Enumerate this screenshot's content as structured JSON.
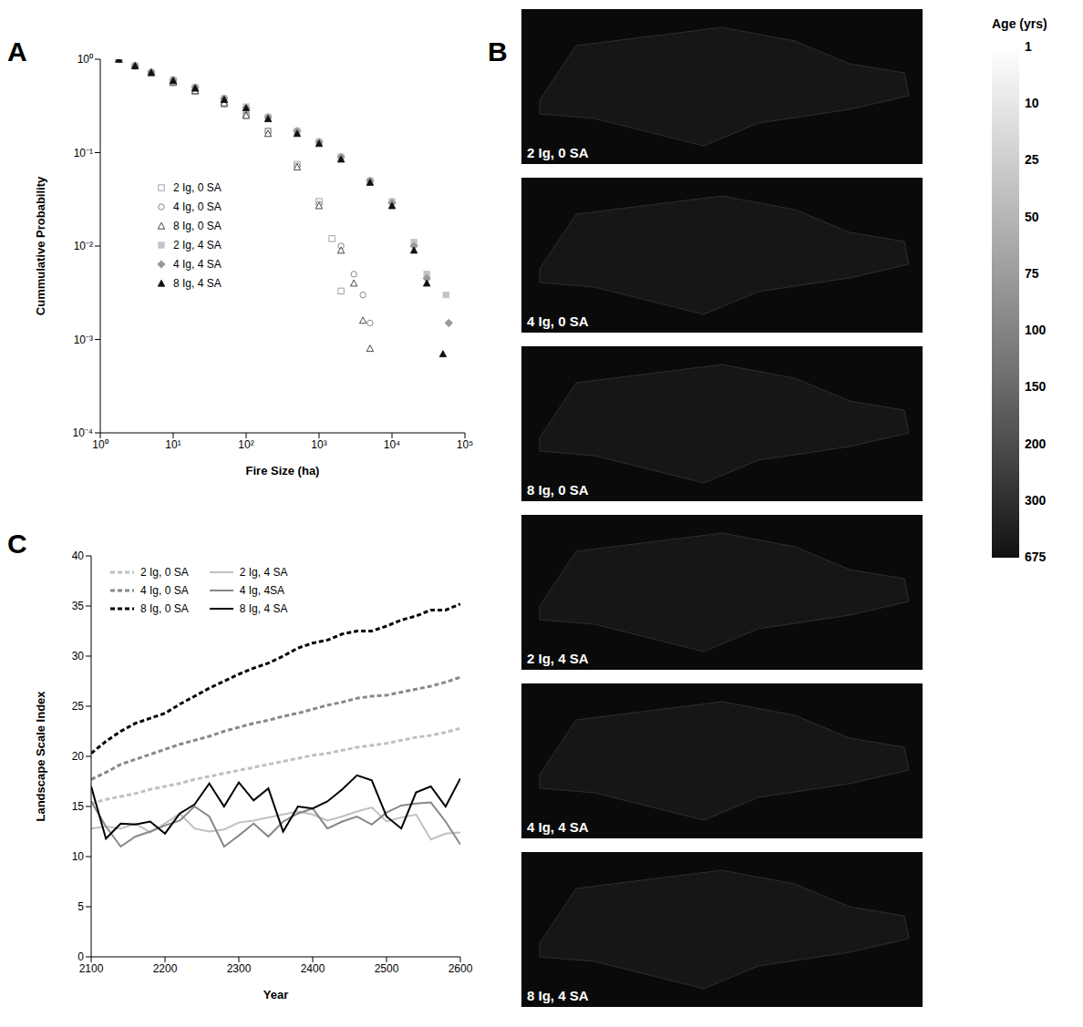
{
  "chart_data": [
    {
      "type": "scatter",
      "panel": "A",
      "log": true,
      "grid": false,
      "legend": "lower left",
      "x_label": "Fire Size (ha)",
      "y_label": "Cummulative Probability",
      "xlim": [
        1,
        100000
      ],
      "xticks": [
        {
          "value": 1,
          "label": "10⁰"
        },
        {
          "value": 10,
          "label": "10¹"
        },
        {
          "value": 100,
          "label": "10²"
        },
        {
          "value": 1000,
          "label": "10³"
        },
        {
          "value": 10000,
          "label": "10⁴"
        },
        {
          "value": 100000,
          "label": "10⁵"
        }
      ],
      "ylim": [
        0.0001,
        1
      ],
      "yticks": [
        {
          "value": 0.0001,
          "label": "10⁻⁴"
        },
        {
          "value": 0.001,
          "label": "10⁻³"
        },
        {
          "value": 0.01,
          "label": "10⁻²"
        },
        {
          "value": 0.1,
          "label": "10⁻¹"
        },
        {
          "value": 1,
          "label": "10⁰"
        }
      ],
      "series": [
        {
          "name": "2 Ig, 0 SA",
          "color": "#9a9a9a",
          "marker": "open_square",
          "x": [
            1.8,
            3,
            5,
            10,
            20,
            50,
            100,
            200,
            500,
            1000,
            1500,
            2000
          ],
          "values": [
            1,
            0.85,
            0.71,
            0.56,
            0.45,
            0.33,
            0.25,
            0.17,
            0.075,
            0.03,
            0.012,
            0.0033
          ]
        },
        {
          "name": "4 Ig, 0 SA",
          "color": "#7a7a7a",
          "marker": "open_circle",
          "x": [
            1.8,
            3,
            5,
            10,
            20,
            50,
            100,
            200,
            500,
            1000,
            2000,
            3000,
            4000,
            5000
          ],
          "values": [
            1,
            0.85,
            0.72,
            0.57,
            0.46,
            0.34,
            0.25,
            0.17,
            0.072,
            0.028,
            0.01,
            0.005,
            0.003,
            0.0015
          ]
        },
        {
          "name": "8 Ig, 0 SA",
          "color": "#333333",
          "marker": "open_triangle",
          "x": [
            1.8,
            3,
            5,
            10,
            20,
            50,
            100,
            200,
            500,
            1000,
            2000,
            3000,
            4000,
            5000
          ],
          "values": [
            1,
            0.86,
            0.72,
            0.57,
            0.46,
            0.34,
            0.25,
            0.16,
            0.07,
            0.027,
            0.009,
            0.004,
            0.0016,
            0.0008
          ]
        },
        {
          "name": "2 Ig, 4 SA",
          "color": "#c4c4c4",
          "marker": "square",
          "x": [
            1.8,
            3,
            5,
            10,
            20,
            50,
            100,
            200,
            500,
            1000,
            2000,
            5000,
            10000,
            20000,
            30000,
            55000
          ],
          "values": [
            1,
            0.84,
            0.72,
            0.6,
            0.5,
            0.38,
            0.31,
            0.24,
            0.17,
            0.13,
            0.09,
            0.05,
            0.03,
            0.011,
            0.005,
            0.003
          ]
        },
        {
          "name": "4 Ig, 4 SA",
          "color": "#999999",
          "marker": "diamond",
          "x": [
            1.8,
            3,
            5,
            10,
            20,
            50,
            100,
            200,
            500,
            1000,
            2000,
            5000,
            10000,
            20000,
            30000,
            60000
          ],
          "values": [
            1,
            0.85,
            0.73,
            0.6,
            0.5,
            0.38,
            0.3,
            0.24,
            0.17,
            0.13,
            0.09,
            0.05,
            0.029,
            0.01,
            0.0045,
            0.0015
          ]
        },
        {
          "name": "8 Ig, 4 SA",
          "color": "#111111",
          "marker": "triangle",
          "x": [
            1.8,
            3,
            5,
            10,
            20,
            50,
            100,
            200,
            500,
            1000,
            2000,
            5000,
            10000,
            20000,
            30000,
            50000
          ],
          "values": [
            1,
            0.85,
            0.72,
            0.59,
            0.49,
            0.37,
            0.3,
            0.23,
            0.16,
            0.125,
            0.085,
            0.048,
            0.027,
            0.009,
            0.004,
            0.0007
          ]
        }
      ]
    },
    {
      "type": "map",
      "panel": "B",
      "maps": [
        "2 Ig, 0 SA",
        "4 Ig, 0 SA",
        "8 Ig, 0 SA",
        "2 Ig, 4 SA",
        "4 Ig, 4 SA",
        "8 Ig, 4 SA"
      ],
      "colorbar": {
        "title": "Age (yrs)",
        "ticks": [
          1,
          10,
          25,
          50,
          75,
          100,
          150,
          200,
          300,
          675
        ]
      }
    },
    {
      "type": "line",
      "panel": "C",
      "grid": false,
      "legend": "upper left",
      "x_label": "Year",
      "y_label": "Landscape Scale Index",
      "xlim": [
        2100,
        2600
      ],
      "xticks": [
        2100,
        2200,
        2300,
        2400,
        2500,
        2600
      ],
      "ylim": [
        0,
        40
      ],
      "yticks": [
        0,
        5,
        10,
        15,
        20,
        25,
        30,
        35,
        40
      ],
      "x": [
        2100,
        2120,
        2140,
        2160,
        2180,
        2200,
        2220,
        2240,
        2260,
        2280,
        2300,
        2320,
        2340,
        2360,
        2380,
        2400,
        2420,
        2440,
        2460,
        2480,
        2500,
        2520,
        2540,
        2560,
        2580,
        2600
      ],
      "series": [
        {
          "name": "2 Ig, 0 SA",
          "color": "#c0c0c0",
          "line_style": "dashed",
          "values": [
            15.3,
            15.7,
            16,
            16.3,
            16.7,
            17,
            17.3,
            17.7,
            18,
            18.3,
            18.6,
            18.9,
            19.2,
            19.5,
            19.8,
            20.1,
            20.3,
            20.6,
            20.9,
            21.1,
            21.3,
            21.6,
            21.9,
            22.1,
            22.4,
            22.8
          ]
        },
        {
          "name": "4 Ig, 0 SA",
          "color": "#888888",
          "line_style": "dashed",
          "values": [
            17.7,
            18.4,
            19.2,
            19.7,
            20.2,
            20.7,
            21.2,
            21.6,
            22,
            22.5,
            22.9,
            23.3,
            23.6,
            24,
            24.3,
            24.7,
            25.1,
            25.4,
            25.8,
            26,
            26.1,
            26.4,
            26.7,
            27,
            27.4,
            27.9
          ]
        },
        {
          "name": "8 Ig, 0 SA",
          "color": "#000000",
          "line_style": "dashed",
          "values": [
            20.3,
            21.5,
            22.5,
            23.3,
            23.8,
            24.3,
            25.2,
            26,
            26.8,
            27.5,
            28.2,
            28.8,
            29.3,
            30,
            30.8,
            31.3,
            31.6,
            32.2,
            32.5,
            32.5,
            33,
            33.6,
            34,
            34.6,
            34.6,
            35.2
          ]
        },
        {
          "name": "2 Ig, 4 SA",
          "color": "#c0c0c0",
          "line_style": "solid",
          "values": [
            12.8,
            13,
            12.8,
            13.3,
            12.4,
            13.3,
            14.3,
            12.8,
            12.5,
            12.7,
            13.4,
            13.6,
            13.9,
            14.2,
            14.5,
            14.2,
            13.6,
            14,
            14.5,
            14.9,
            13.5,
            13.9,
            14.2,
            11.7,
            12.3,
            12.4
          ]
        },
        {
          "name": "4 Ig, 4SA",
          "color": "#888888",
          "line_style": "solid",
          "values": [
            15.5,
            13,
            11,
            12,
            12.5,
            13.1,
            13.6,
            15,
            14,
            11,
            12.1,
            13.3,
            12,
            13.5,
            14.3,
            14.8,
            12.8,
            13.5,
            14,
            13.2,
            14.4,
            15.1,
            15.3,
            15.4,
            13.5,
            11.2
          ]
        },
        {
          "name": "8 Ig, 4 SA",
          "color": "#000000",
          "line_style": "solid",
          "values": [
            17,
            11.8,
            13.3,
            13.2,
            13.5,
            12.3,
            14.3,
            15.2,
            17.3,
            15,
            17.4,
            15.6,
            16.8,
            12.5,
            15,
            14.8,
            15.5,
            16.7,
            18.1,
            17.6,
            14,
            12.8,
            16.4,
            17,
            15,
            17.8
          ]
        }
      ]
    }
  ]
}
